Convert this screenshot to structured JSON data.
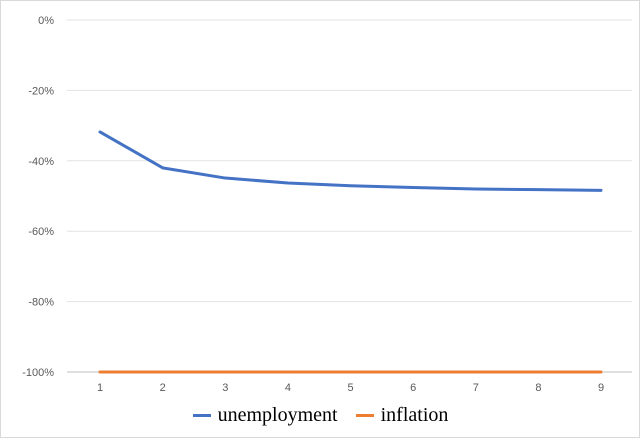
{
  "chart_data": {
    "type": "line",
    "title": "",
    "xlabel": "",
    "ylabel": "",
    "x": [
      1,
      2,
      3,
      4,
      5,
      6,
      7,
      8,
      9
    ],
    "ylim": [
      -100,
      0
    ],
    "yticks": [
      0,
      -20,
      -40,
      -60,
      -80,
      -100
    ],
    "ytick_labels": [
      "0%",
      "-20%",
      "-40%",
      "-60%",
      "-80%",
      "-100%"
    ],
    "xtick_labels": [
      "1",
      "2",
      "3",
      "4",
      "5",
      "6",
      "7",
      "8",
      "9"
    ],
    "grid": true,
    "legend_position": "bottom",
    "series": [
      {
        "name": "unemployment",
        "color": "#4472C4",
        "values": [
          -31.8,
          -42.0,
          -44.9,
          -46.3,
          -47.1,
          -47.6,
          -48.0,
          -48.2,
          -48.4
        ]
      },
      {
        "name": "inflation",
        "color": "#ED7D31",
        "values": [
          -100,
          -100,
          -100,
          -100,
          -100,
          -100,
          -100,
          -100,
          -100
        ]
      }
    ]
  }
}
